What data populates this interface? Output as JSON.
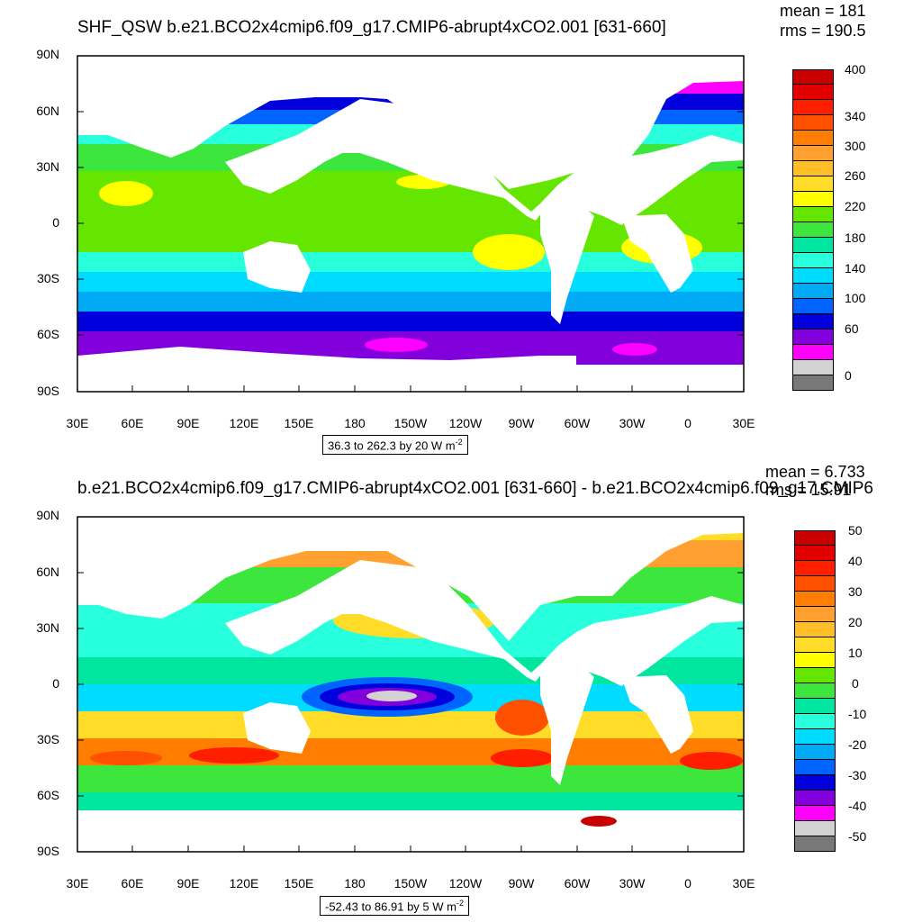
{
  "panels": [
    {
      "id": "p1",
      "title": "SHF_QSW b.e21.BCO2x4cmip6.f09_g17.CMIP6-abrupt4xCO2.001 [631-660]",
      "stats": {
        "mean": "mean = 181",
        "rms": "rms = 190.5"
      },
      "info": "36.3 to 262.3 by 20  W m",
      "info_sup": "-2",
      "lat_labels": [
        "90N",
        "60N",
        "30N",
        "0",
        "30S",
        "60S",
        "90S"
      ],
      "lon_labels": [
        "30E",
        "60E",
        "90E",
        "120E",
        "150E",
        "180",
        "150W",
        "120W",
        "90W",
        "60W",
        "30W",
        "0",
        "30E"
      ],
      "colorbar": {
        "colors": [
          "#c80000",
          "#e10000",
          "#ff1e00",
          "#ff5000",
          "#ff7d00",
          "#ffa030",
          "#ffbe28",
          "#ffdc28",
          "#ffff00",
          "#64e600",
          "#3ce63c",
          "#00e6a0",
          "#28ffdc",
          "#00dcff",
          "#00aaf5",
          "#0064ff",
          "#0000dc",
          "#8200dc",
          "#ff00ff",
          "#d2d2d2",
          "#787878"
        ],
        "labels": [
          "400",
          "340",
          "300",
          "260",
          "220",
          "180",
          "140",
          "100",
          "60",
          "0"
        ]
      }
    },
    {
      "id": "p2",
      "title": "b.e21.BCO2x4cmip6.f09_g17.CMIP6-abrupt4xCO2.001 [631-660] - b.e21.BCO2x4cmip6.f09_g17.CMIP6",
      "stats": {
        "mean": "mean = 6.733",
        "rms": "rms = 15.91"
      },
      "info": "-52.43 to 86.91 by 5  W m",
      "info_sup": "-2",
      "lat_labels": [
        "90N",
        "60N",
        "30N",
        "0",
        "30S",
        "60S",
        "90S"
      ],
      "lon_labels": [
        "30E",
        "60E",
        "90E",
        "120E",
        "150E",
        "180",
        "150W",
        "120W",
        "90W",
        "60W",
        "30W",
        "0",
        "30E"
      ],
      "colorbar": {
        "colors": [
          "#c80000",
          "#e10000",
          "#ff1e00",
          "#ff5000",
          "#ff7d00",
          "#ffa030",
          "#ffbe28",
          "#ffdc28",
          "#ffff00",
          "#64e600",
          "#3ce63c",
          "#00e6a0",
          "#28ffdc",
          "#00dcff",
          "#00aaf5",
          "#0064ff",
          "#0000dc",
          "#8200dc",
          "#ff00ff",
          "#d2d2d2",
          "#787878"
        ],
        "labels": [
          "50",
          "40",
          "30",
          "20",
          "10",
          "0",
          "-10",
          "-20",
          "-30",
          "-40",
          "-50"
        ]
      }
    }
  ]
}
